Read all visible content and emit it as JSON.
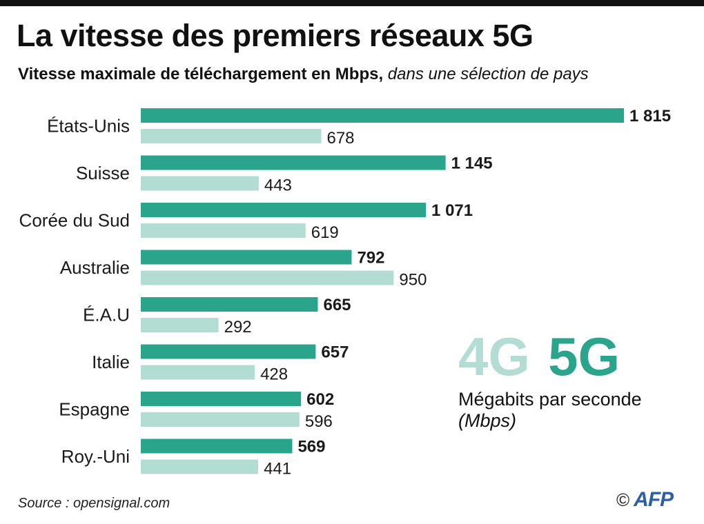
{
  "header": {
    "title": "La vitesse des premiers réseaux 5G",
    "subtitle_bold": "Vitesse maximale de téléchargement en Mbps,",
    "subtitle_italic": "dans une sélection de pays"
  },
  "legend": {
    "label_4g": "4G",
    "label_5g": "5G",
    "unit": "Mégabits par seconde",
    "unit_abbr": "(Mbps)"
  },
  "footer": {
    "source": "Source : opensignal.com",
    "copyright": "©",
    "logo": "AFP"
  },
  "colors": {
    "g5": "#2aa58b",
    "g4": "#b3ddd2",
    "text": "#1a1a1a"
  },
  "chart_data": {
    "type": "bar",
    "orientation": "horizontal",
    "categories": [
      "États-Unis",
      "Suisse",
      "Corée du Sud",
      "Australie",
      "É.A.U",
      "Italie",
      "Espagne",
      "Roy.-Uni"
    ],
    "series": [
      {
        "name": "5G",
        "values": [
          1815,
          1145,
          1071,
          792,
          665,
          657,
          602,
          569
        ],
        "labels": [
          "1 815",
          "1 145",
          "1 071",
          "792",
          "665",
          "657",
          "602",
          "569"
        ]
      },
      {
        "name": "4G",
        "values": [
          678,
          443,
          619,
          950,
          292,
          428,
          596,
          441
        ],
        "labels": [
          "678",
          "443",
          "619",
          "950",
          "292",
          "428",
          "596",
          "441"
        ]
      }
    ],
    "xlim": [
      0,
      1815
    ],
    "grid": false
  }
}
